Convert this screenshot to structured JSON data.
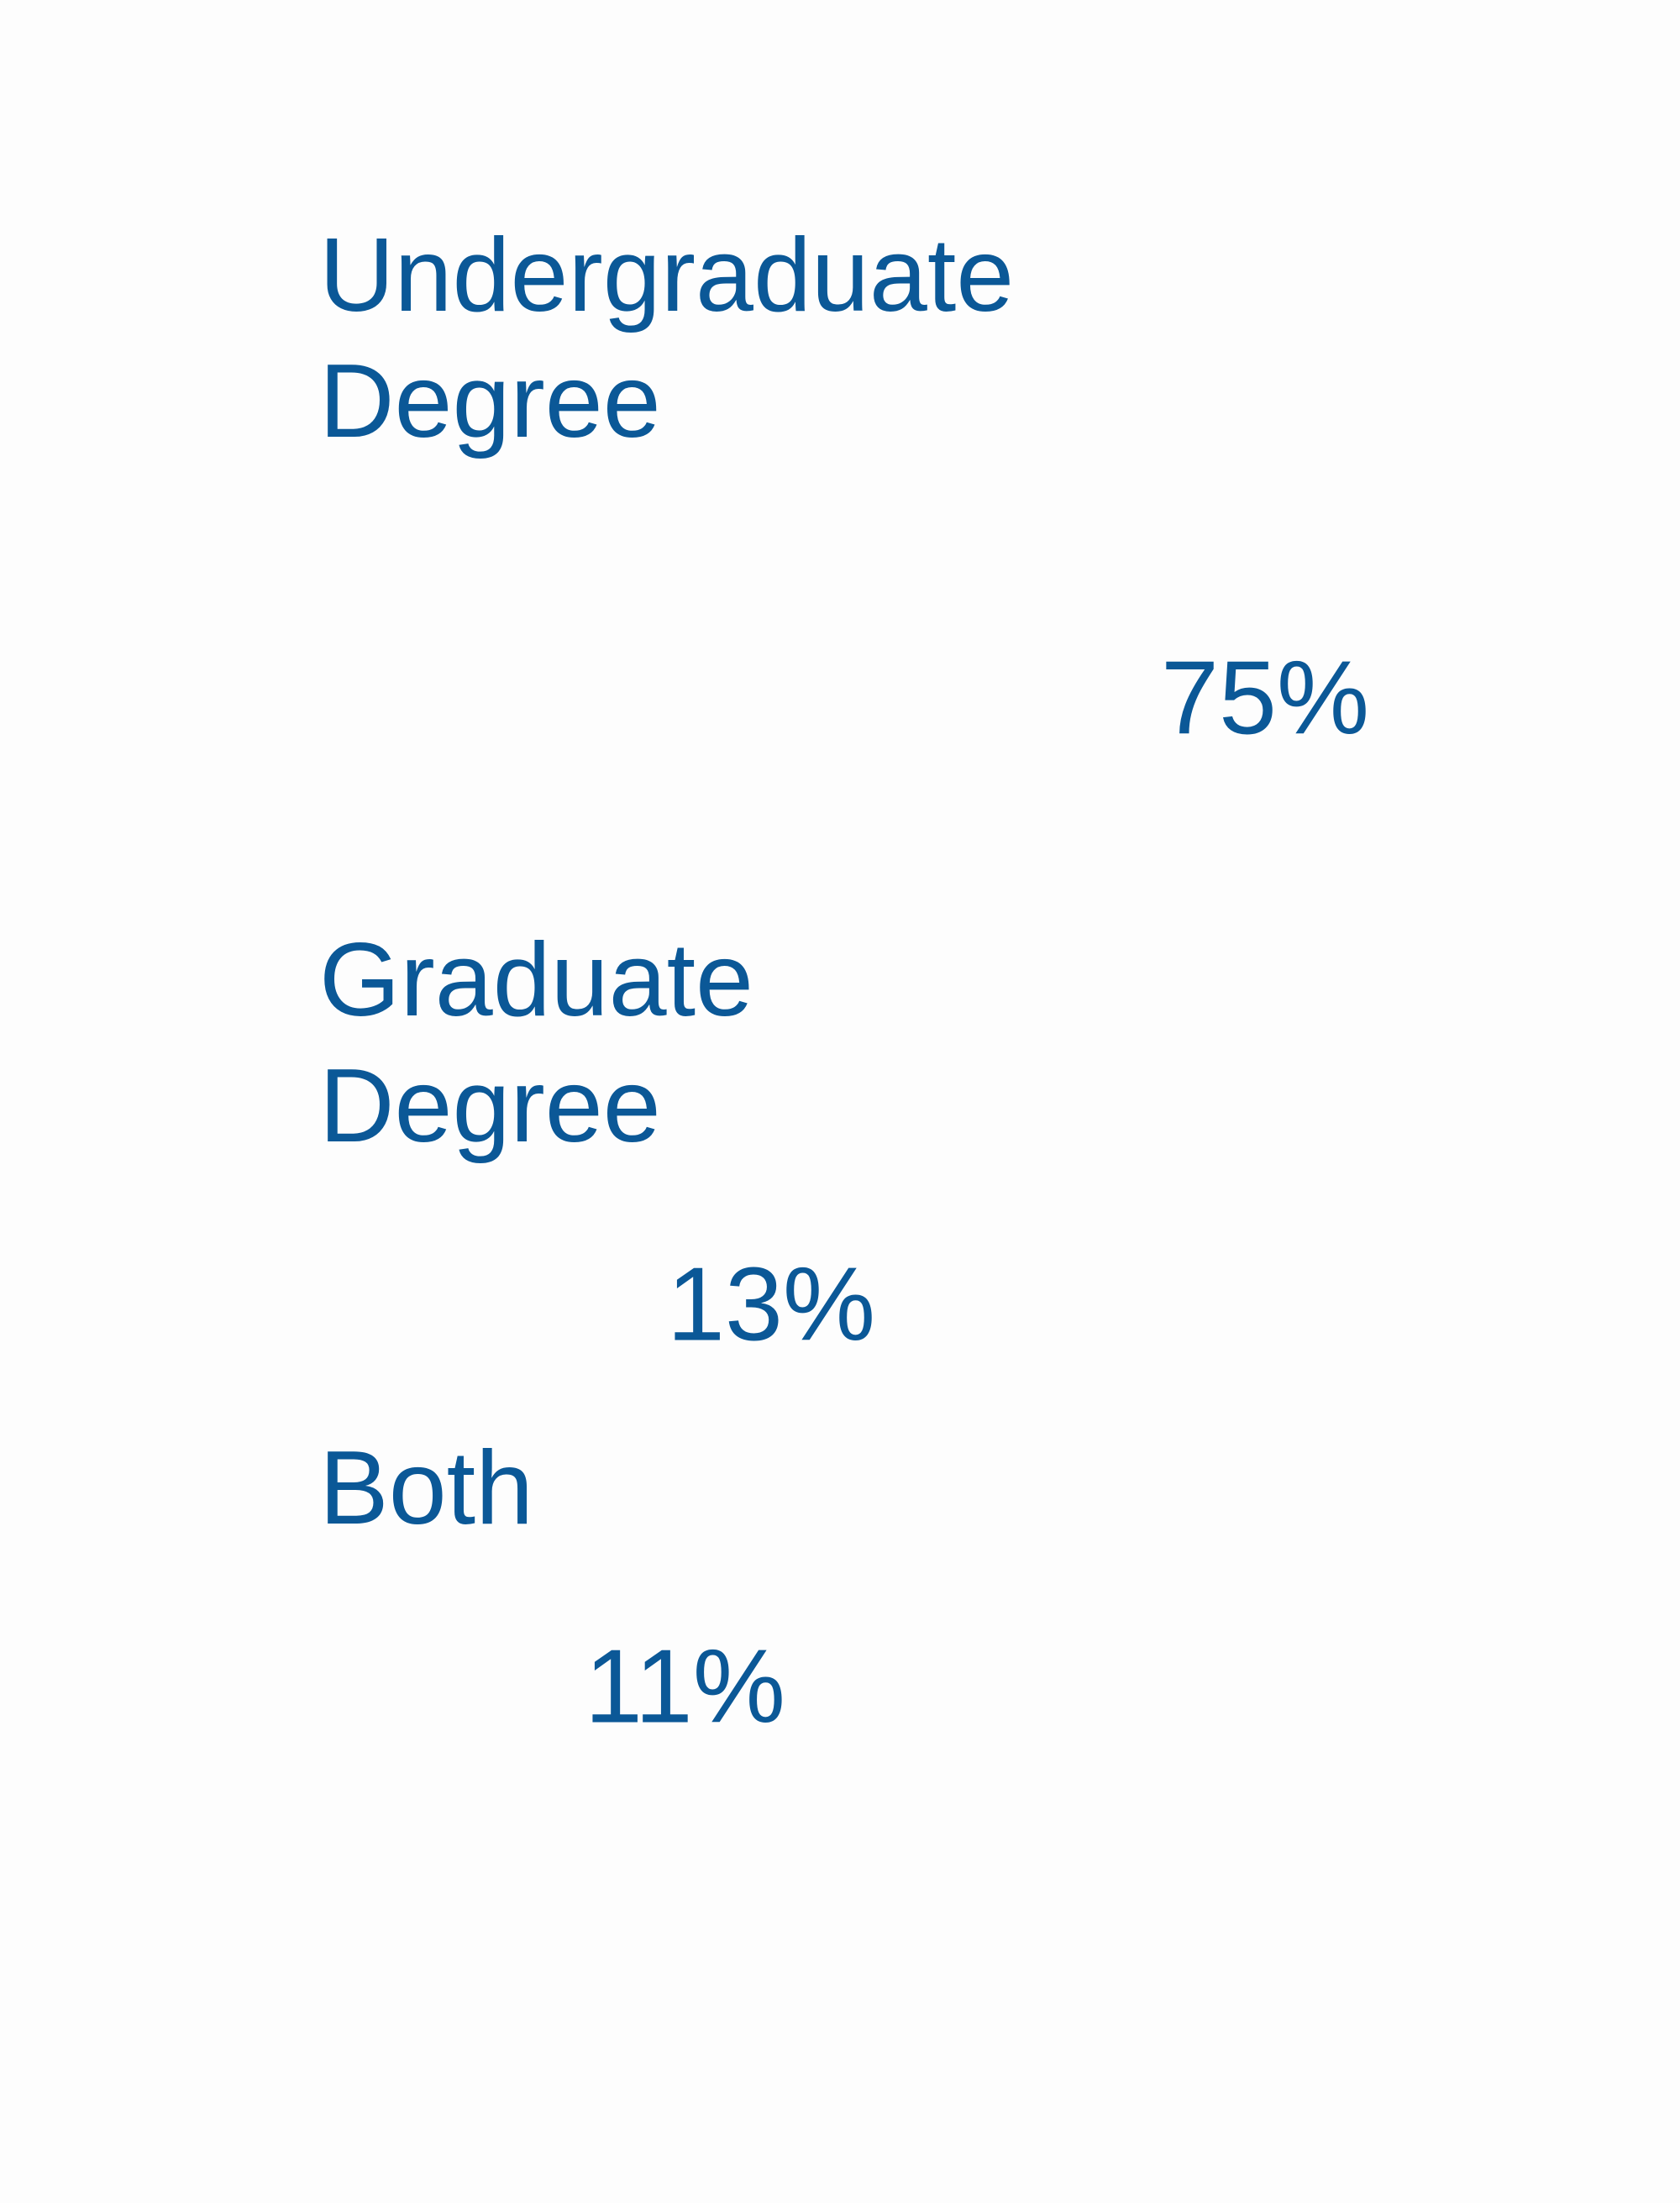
{
  "chart_data": {
    "type": "pictogram",
    "categories": [
      "Undergraduate Degree",
      "Graduate Degree",
      "Both"
    ],
    "values": [
      75,
      13,
      11
    ],
    "value_labels": [
      "75%",
      "13%",
      "11%"
    ],
    "colors": [
      "#0b5897",
      "#b7c4d4",
      "#343538"
    ]
  }
}
